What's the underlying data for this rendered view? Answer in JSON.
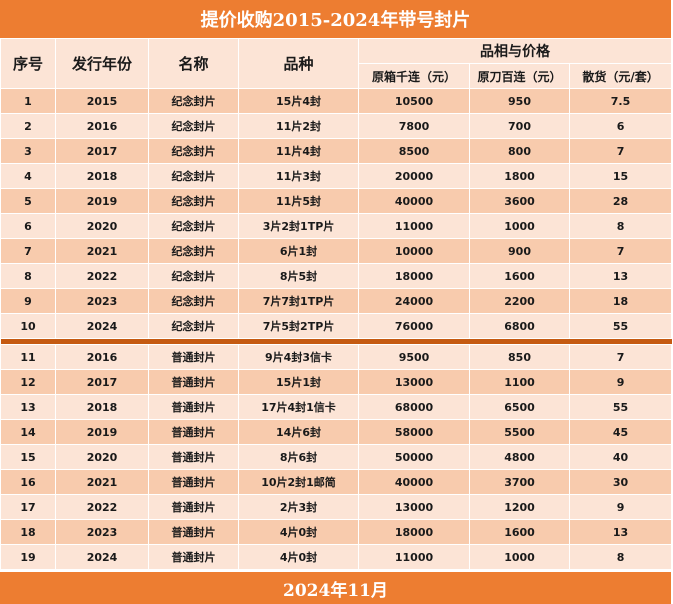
{
  "title": "提价收购2015-2024年带号封片",
  "footer": "2024年11月",
  "colors": {
    "accent": "#ed7d31",
    "header_bg": "#fce4d6",
    "row_dark": "#f8cbad",
    "row_light": "#fce4d6",
    "separator": "#c55a11"
  },
  "headers": {
    "index": "序号",
    "year": "发行年份",
    "name": "名称",
    "variety": "品种",
    "group": "品相与价格",
    "box": "原箱千连（元）",
    "knife": "原刀百连（元）",
    "loose": "散货（元/套）"
  },
  "rows": [
    [
      "1",
      "2015",
      "纪念封片",
      "15片4封",
      "10500",
      "950",
      "7.5"
    ],
    [
      "2",
      "2016",
      "纪念封片",
      "11片2封",
      "7800",
      "700",
      "6"
    ],
    [
      "3",
      "2017",
      "纪念封片",
      "11片4封",
      "8500",
      "800",
      "7"
    ],
    [
      "4",
      "2018",
      "纪念封片",
      "11片3封",
      "20000",
      "1800",
      "15"
    ],
    [
      "5",
      "2019",
      "纪念封片",
      "11片5封",
      "40000",
      "3600",
      "28"
    ],
    [
      "6",
      "2020",
      "纪念封片",
      "3片2封1TP片",
      "11000",
      "1000",
      "8"
    ],
    [
      "7",
      "2021",
      "纪念封片",
      "6片1封",
      "10000",
      "900",
      "7"
    ],
    [
      "8",
      "2022",
      "纪念封片",
      "8片5封",
      "18000",
      "1600",
      "13"
    ],
    [
      "9",
      "2023",
      "纪念封片",
      "7片7封1TP片",
      "24000",
      "2200",
      "18"
    ],
    [
      "10",
      "2024",
      "纪念封片",
      "7片5封2TP片",
      "76000",
      "6800",
      "55"
    ],
    [
      "11",
      "2016",
      "普通封片",
      "9片4封3信卡",
      "9500",
      "850",
      "7"
    ],
    [
      "12",
      "2017",
      "普通封片",
      "15片1封",
      "13000",
      "1100",
      "9"
    ],
    [
      "13",
      "2018",
      "普通封片",
      "17片4封1信卡",
      "68000",
      "6500",
      "55"
    ],
    [
      "14",
      "2019",
      "普通封片",
      "14片6封",
      "58000",
      "5500",
      "45"
    ],
    [
      "15",
      "2020",
      "普通封片",
      "8片6封",
      "50000",
      "4800",
      "40"
    ],
    [
      "16",
      "2021",
      "普通封片",
      "10片2封1邮简",
      "40000",
      "3700",
      "30"
    ],
    [
      "17",
      "2022",
      "普通封片",
      "2片3封",
      "13000",
      "1200",
      "9"
    ],
    [
      "18",
      "2023",
      "普通封片",
      "4片0封",
      "18000",
      "1600",
      "13"
    ],
    [
      "19",
      "2024",
      "普通封片",
      "4片0封",
      "11000",
      "1000",
      "8"
    ]
  ]
}
